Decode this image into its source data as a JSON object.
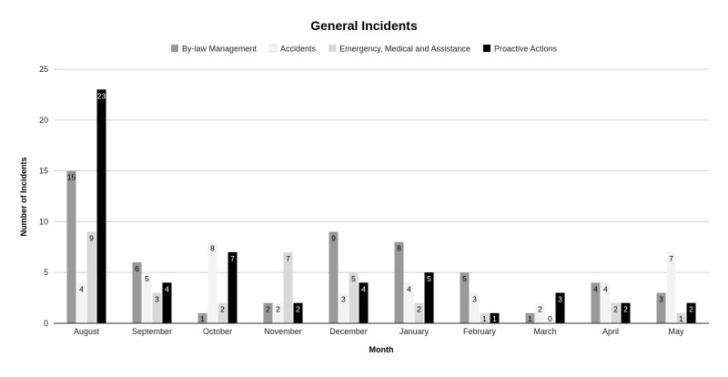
{
  "chart_data": {
    "type": "bar",
    "title": "General Incidents",
    "xlabel": "Month",
    "ylabel": "Number of Incidents",
    "ylim": [
      0,
      25
    ],
    "yticks": [
      0,
      5,
      10,
      15,
      20,
      25
    ],
    "grid": true,
    "legend_position": "top",
    "categories": [
      "August",
      "September",
      "October",
      "November",
      "December",
      "January",
      "February",
      "March",
      "April",
      "May"
    ],
    "series": [
      {
        "name": "By-law Management",
        "color": "#999999",
        "values": [
          15,
          6,
          1,
          2,
          9,
          8,
          5,
          1,
          4,
          3
        ]
      },
      {
        "name": "Accidents",
        "color": "#f3f3f3",
        "values": [
          4,
          5,
          8,
          2,
          3,
          4,
          3,
          2,
          4,
          7
        ]
      },
      {
        "name": "Emergency, Medical and Assistance",
        "color": "#d9d9d9",
        "values": [
          9,
          3,
          2,
          7,
          5,
          2,
          1,
          0,
          2,
          1
        ]
      },
      {
        "name": "Proactive Actions",
        "color": "#000000",
        "values": [
          23,
          4,
          7,
          2,
          4,
          5,
          1,
          3,
          2,
          2
        ]
      }
    ]
  }
}
